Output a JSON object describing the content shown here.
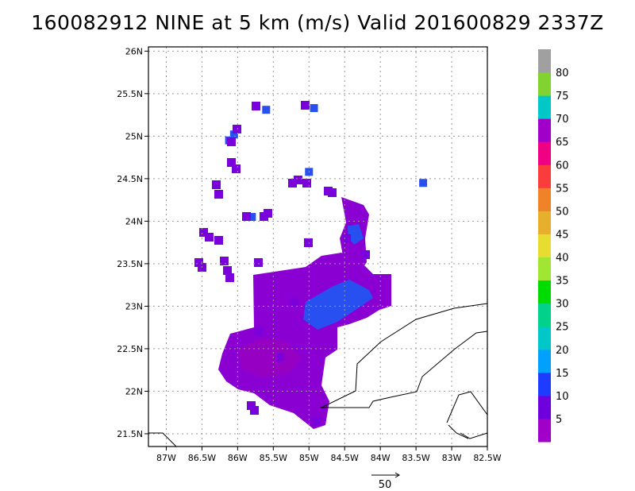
{
  "chart_data": {
    "type": "heatmap",
    "title": "160082912 NINE at 5 km (m/s) Valid 201600829 2337Z",
    "x_ticks": [
      "87W",
      "86.5W",
      "86W",
      "85.5W",
      "85W",
      "84.5W",
      "84W",
      "83.5W",
      "83W",
      "82.5W"
    ],
    "y_ticks": [
      "21.5N",
      "22N",
      "22.5N",
      "23N",
      "23.5N",
      "24N",
      "24.5N",
      "25N",
      "25.5N",
      "26N"
    ],
    "xlim": [
      -87.25,
      -82.5
    ],
    "ylim": [
      21.35,
      26.05
    ],
    "grid": true,
    "colorbar": {
      "labels": [
        "5",
        "10",
        "15",
        "20",
        "25",
        "30",
        "35",
        "40",
        "45",
        "50",
        "55",
        "60",
        "65",
        "70",
        "75",
        "80"
      ],
      "colors": [
        "#a000c8",
        "#6e00dc",
        "#1e3cff",
        "#00a0ff",
        "#00c8c8",
        "#00d28c",
        "#00dc00",
        "#a0e632",
        "#e6dc32",
        "#e6af2d",
        "#f08228",
        "#fa3c3c",
        "#f00082",
        "#a000c8",
        "#00c8c8",
        "#82d232",
        "#a0a0a0"
      ]
    },
    "wind_speed_cells": [
      {
        "lat": 25.33,
        "lon": -84.93,
        "level": "10-15"
      },
      {
        "lat": 25.31,
        "lon": -85.6,
        "level": "10-15"
      },
      {
        "lat": 25.02,
        "lon": -86.05,
        "level": "10-15"
      },
      {
        "lat": 24.95,
        "lon": -86.12,
        "level": "10-15"
      },
      {
        "lat": 24.58,
        "lon": -85.0,
        "level": "10-15"
      },
      {
        "lat": 24.45,
        "lon": -83.4,
        "level": "10-15"
      },
      {
        "lat": 24.05,
        "lon": -85.8,
        "level": "10-15"
      },
      {
        "lat": 23.9,
        "lon": -84.4,
        "level": "10-15"
      },
      {
        "lat": 23.1,
        "lon": -84.6,
        "level": "10-15"
      },
      {
        "lat": 22.95,
        "lon": -84.85,
        "level": "10-15"
      },
      {
        "lat": 23.05,
        "lon": -84.3,
        "level": "10-15"
      },
      {
        "lat": 22.9,
        "lon": -85.0,
        "level": "10-15"
      },
      {
        "lat": 23.05,
        "lon": -85.2,
        "level": "5-10"
      },
      {
        "lat": 22.7,
        "lon": -85.7,
        "level": "5-10"
      },
      {
        "lat": 22.4,
        "lon": -85.4,
        "level": "5-10"
      }
    ],
    "reference_vector": {
      "label": "50"
    }
  }
}
